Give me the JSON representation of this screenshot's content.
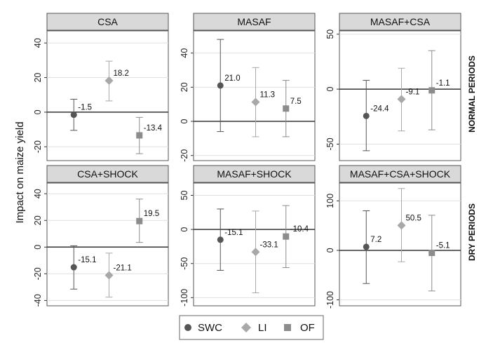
{
  "chart_data": {
    "type": "scatter",
    "ylabel": "Impact on maize yield",
    "row_labels": [
      "NORMAL PERIODS",
      "DRY PERIODS"
    ],
    "categories": [
      "SWC",
      "LI",
      "OF"
    ],
    "colors": {
      "SWC": "#555555",
      "LI": "#a8a8a8",
      "OF": "#8c8c8c"
    },
    "markers": {
      "SWC": "circle",
      "LI": "diamond",
      "OF": "square"
    },
    "legend_position": "bottom",
    "panels": [
      {
        "title": "CSA",
        "ylim": [
          -28,
          47
        ],
        "yticks": [
          -20,
          0,
          20,
          40
        ],
        "estimates": [
          -1.5,
          18.2,
          -13.4
        ],
        "labels": [
          "-1.5",
          "18.2",
          "-13.4"
        ],
        "ci_low": [
          -10.5,
          6.5,
          -24
        ],
        "ci_high": [
          7.5,
          29.5,
          -3
        ]
      },
      {
        "title": "MASAF",
        "ylim": [
          -23,
          53
        ],
        "yticks": [
          -20,
          0,
          20,
          40
        ],
        "estimates": [
          21.0,
          11.3,
          7.5
        ],
        "labels": [
          "21.0",
          "11.3",
          "7.5"
        ],
        "ci_low": [
          -6,
          -9,
          -9
        ],
        "ci_high": [
          48,
          31.5,
          24
        ]
      },
      {
        "title": "MASAF+CSA",
        "ylim": [
          -65,
          53
        ],
        "yticks": [
          -50,
          0,
          50
        ],
        "estimates": [
          -24.4,
          -9.1,
          -1.1
        ],
        "labels": [
          "-24.4",
          "-9.1",
          "-1.1"
        ],
        "ci_low": [
          -56,
          -38,
          -37
        ],
        "ci_high": [
          8,
          19,
          35
        ]
      },
      {
        "title": "CSA+SHOCK",
        "ylim": [
          -44,
          48
        ],
        "yticks": [
          -40,
          -20,
          0,
          20,
          40
        ],
        "estimates": [
          -15.1,
          -21.1,
          19.5
        ],
        "labels": [
          "-15.1",
          "-21.1",
          "19.5"
        ],
        "ci_low": [
          -31.5,
          -37.5,
          3.5
        ],
        "ci_high": [
          1,
          -4.5,
          36
        ]
      },
      {
        "title": "MASAF+SHOCK",
        "ylim": [
          -112,
          68
        ],
        "yticks": [
          -100,
          -50,
          0,
          50
        ],
        "estimates": [
          -15.1,
          -33.1,
          -10.4
        ],
        "labels": [
          "-15.1",
          "-33.1",
          "-10.4"
        ],
        "ci_low": [
          -60,
          -93,
          -56
        ],
        "ci_high": [
          30,
          27,
          35
        ]
      },
      {
        "title": "MASAF+CSA+SHOCK",
        "ylim": [
          -112,
          136
        ],
        "yticks": [
          -100,
          0,
          100
        ],
        "estimates": [
          7.2,
          50.5,
          -5.1
        ],
        "labels": [
          "7.2",
          "50.5",
          "-5.1"
        ],
        "ci_low": [
          -67,
          -23,
          -82
        ],
        "ci_high": [
          80,
          125,
          71
        ]
      }
    ]
  }
}
